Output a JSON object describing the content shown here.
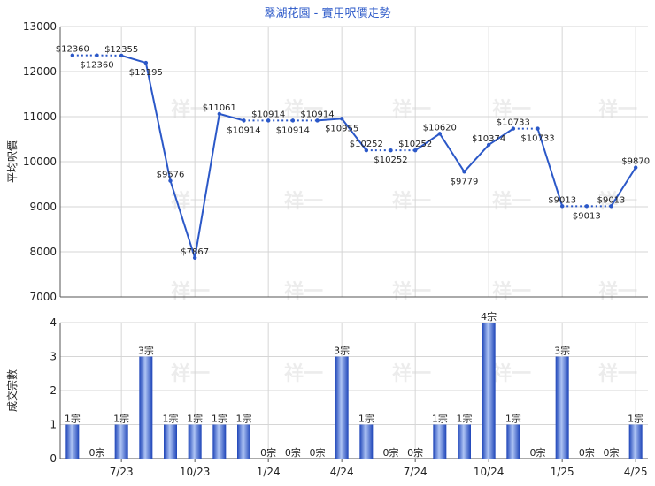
{
  "chart_data": [
    {
      "type": "line",
      "title": "翠湖花園 - 實用呎價走勢",
      "ylabel": "平均呎價",
      "ylim": [
        7000,
        13000
      ],
      "yticks": [
        7000,
        8000,
        9000,
        10000,
        11000,
        12000,
        13000
      ],
      "grid": true,
      "points": [
        {
          "i": 0,
          "v": 12360,
          "label": "$12360"
        },
        {
          "i": 1,
          "v": 12360,
          "label": "$12360"
        },
        {
          "i": 2,
          "v": 12355,
          "label": "$12355"
        },
        {
          "i": 3,
          "v": 12195,
          "label": "$12195"
        },
        {
          "i": 4,
          "v": 9576,
          "label": "$9576"
        },
        {
          "i": 5,
          "v": 7867,
          "label": "$7867"
        },
        {
          "i": 6,
          "v": 11061,
          "label": "$11061"
        },
        {
          "i": 7,
          "v": 10914,
          "label": "$10914"
        },
        {
          "i": 8,
          "v": 10914,
          "label": "$10914"
        },
        {
          "i": 9,
          "v": 10914,
          "label": "$10914"
        },
        {
          "i": 10,
          "v": 10914,
          "label": "$10914"
        },
        {
          "i": 11,
          "v": 10955,
          "label": "$10955"
        },
        {
          "i": 12,
          "v": 10252,
          "label": "$10252"
        },
        {
          "i": 13,
          "v": 10252,
          "label": "$10252"
        },
        {
          "i": 14,
          "v": 10252,
          "label": "$10252"
        },
        {
          "i": 15,
          "v": 10620,
          "label": "$10620"
        },
        {
          "i": 16,
          "v": 9779,
          "label": "$9779"
        },
        {
          "i": 17,
          "v": 10374,
          "label": "$10374"
        },
        {
          "i": 18,
          "v": 10733,
          "label": "$10733"
        },
        {
          "i": 19,
          "v": 10733,
          "label": "$10733"
        },
        {
          "i": 20,
          "v": 9013,
          "label": "$9013"
        },
        {
          "i": 21,
          "v": 9013,
          "label": "$9013"
        },
        {
          "i": 22,
          "v": 9013,
          "label": "$9013"
        },
        {
          "i": 23,
          "v": 9870,
          "label": "$9870"
        }
      ],
      "dotted_segments": [
        [
          0,
          1
        ],
        [
          1,
          2
        ],
        [
          7,
          8
        ],
        [
          8,
          9
        ],
        [
          9,
          10
        ],
        [
          12,
          13
        ],
        [
          13,
          14
        ],
        [
          18,
          19
        ],
        [
          20,
          21
        ],
        [
          21,
          22
        ]
      ],
      "label_below": [
        1,
        3,
        7,
        9,
        11,
        13,
        16,
        19,
        21
      ]
    },
    {
      "type": "bar",
      "ylabel": "成交宗數",
      "ylim": [
        0,
        4
      ],
      "yticks": [
        0,
        1,
        2,
        3,
        4
      ],
      "grid": true,
      "values": [
        1,
        0,
        1,
        3,
        1,
        1,
        1,
        1,
        0,
        0,
        0,
        3,
        1,
        0,
        0,
        1,
        1,
        4,
        1,
        0,
        3,
        0,
        0,
        1
      ],
      "value_labels": [
        "1宗",
        "0宗",
        "1宗",
        "3宗",
        "1宗",
        "1宗",
        "1宗",
        "1宗",
        "0宗",
        "0宗",
        "0宗",
        "3宗",
        "1宗",
        "0宗",
        "0宗",
        "1宗",
        "1宗",
        "4宗",
        "1宗",
        "0宗",
        "3宗",
        "0宗",
        "0宗",
        "1宗"
      ],
      "x_ticks": [
        {
          "i": 2,
          "label": "7/23"
        },
        {
          "i": 5,
          "label": "10/23"
        },
        {
          "i": 8,
          "label": "1/24"
        },
        {
          "i": 11,
          "label": "4/24"
        },
        {
          "i": 14,
          "label": "7/24"
        },
        {
          "i": 17,
          "label": "10/24"
        },
        {
          "i": 20,
          "label": "1/25"
        },
        {
          "i": 23,
          "label": "4/25"
        }
      ]
    }
  ],
  "watermark": "祥一",
  "colors": {
    "line": "#2b58c8",
    "bar_dark": "#1d44b8",
    "bar_light": "#aec4f4",
    "grid": "#d6d6d6",
    "axis": "#555555",
    "title": "#2b58c8",
    "text": "#222222"
  }
}
